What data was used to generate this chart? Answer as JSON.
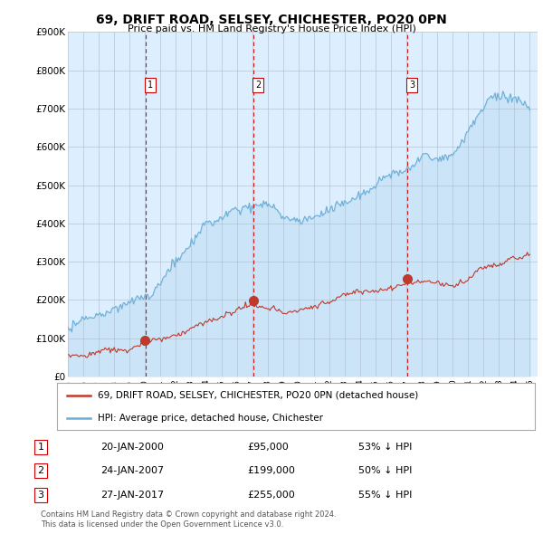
{
  "title": "69, DRIFT ROAD, SELSEY, CHICHESTER, PO20 0PN",
  "subtitle": "Price paid vs. HM Land Registry's House Price Index (HPI)",
  "legend_line1": "69, DRIFT ROAD, SELSEY, CHICHESTER, PO20 0PN (detached house)",
  "legend_line2": "HPI: Average price, detached house, Chichester",
  "footer1": "Contains HM Land Registry data © Crown copyright and database right 2024.",
  "footer2": "This data is licensed under the Open Government Licence v3.0.",
  "transactions": [
    {
      "num": 1,
      "date": "20-JAN-2000",
      "price": "£95,000",
      "hpi": "53% ↓ HPI",
      "year": 2000.05,
      "value": 95000
    },
    {
      "num": 2,
      "date": "24-JAN-2007",
      "price": "£199,000",
      "hpi": "50% ↓ HPI",
      "year": 2007.05,
      "value": 199000
    },
    {
      "num": 3,
      "date": "27-JAN-2017",
      "price": "£255,000",
      "hpi": "55% ↓ HPI",
      "year": 2017.05,
      "value": 255000
    }
  ],
  "hpi_color": "#6baed6",
  "price_color": "#c0392b",
  "vline_color": "#cc0000",
  "background_color": "#ffffff",
  "plot_bg_color": "#ddeeff",
  "grid_color": "#aabbcc",
  "ylim": [
    0,
    900000
  ],
  "xlim_start": 1995.0,
  "xlim_end": 2025.5,
  "yticks": [
    0,
    100000,
    200000,
    300000,
    400000,
    500000,
    600000,
    700000,
    800000,
    900000
  ],
  "ytick_labels": [
    "£0",
    "£100K",
    "£200K",
    "£300K",
    "£400K",
    "£500K",
    "£600K",
    "£700K",
    "£800K",
    "£900K"
  ],
  "xtick_years": [
    1995,
    1996,
    1997,
    1998,
    1999,
    2000,
    2001,
    2002,
    2003,
    2004,
    2005,
    2006,
    2007,
    2008,
    2009,
    2010,
    2011,
    2012,
    2013,
    2014,
    2015,
    2016,
    2017,
    2018,
    2019,
    2020,
    2021,
    2022,
    2023,
    2024,
    2025
  ]
}
